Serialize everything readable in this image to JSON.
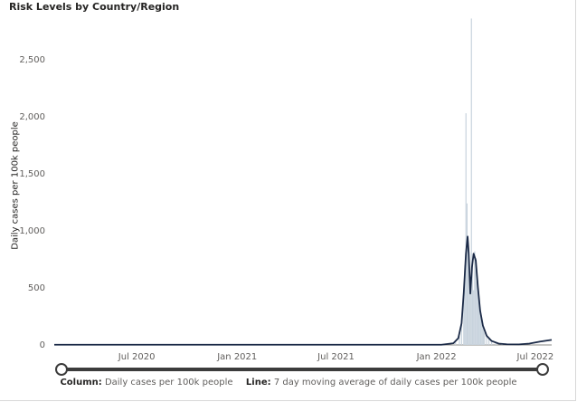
{
  "title": "Risk Levels by Country/Region",
  "legend": {
    "column_key": "Column:",
    "column_value": "Daily cases per 100k people",
    "line_key": "Line:",
    "line_value": "7 day moving average of daily cases per 100k people"
  },
  "colors": {
    "column": "#c8d3dd",
    "line": "#1b2a47",
    "slider": "#3c3c3c"
  },
  "chart_data": {
    "type": "bar",
    "ylabel": "Daily cases per 100k people",
    "ylim": [
      0,
      2800
    ],
    "yticks": [
      0,
      500,
      1000,
      1500,
      2000,
      2500
    ],
    "ytick_labels": [
      "0",
      "500",
      "1,000",
      "1,500",
      "2,000",
      "2,500"
    ],
    "xlim": [
      "2020-02-01",
      "2022-07-31"
    ],
    "xticks": [
      "2020-07-01",
      "2021-01-01",
      "2021-07-01",
      "2022-01-01",
      "2022-07-01"
    ],
    "xtick_labels": [
      "Jul 2020",
      "Jan 2021",
      "Jul 2021",
      "Jan 2022",
      "Jul 2022"
    ],
    "grid": false,
    "legend_position": "bottom",
    "series": [
      {
        "name": "Daily cases per 100k people",
        "type": "column",
        "x": [
          "2022-02-05",
          "2022-02-12",
          "2022-02-16",
          "2022-02-20",
          "2022-02-22",
          "2022-02-24",
          "2022-02-26",
          "2022-02-28",
          "2022-03-02",
          "2022-03-04",
          "2022-03-06",
          "2022-03-08",
          "2022-03-10",
          "2022-03-12",
          "2022-03-14",
          "2022-03-16",
          "2022-03-18",
          "2022-03-20",
          "2022-03-22",
          "2022-03-24",
          "2022-03-26",
          "2022-03-28",
          "2022-03-30",
          "2022-04-03",
          "2022-04-07",
          "2022-04-12",
          "2022-04-20",
          "2022-05-01"
        ],
        "values": [
          20,
          80,
          200,
          420,
          700,
          2030,
          1240,
          900,
          620,
          500,
          2860,
          700,
          480,
          820,
          760,
          560,
          500,
          380,
          300,
          230,
          180,
          140,
          110,
          80,
          60,
          40,
          20,
          10
        ]
      },
      {
        "name": "7 day moving average of daily cases per 100k people",
        "type": "line",
        "x": [
          "2020-02-01",
          "2021-06-01",
          "2022-01-10",
          "2022-02-01",
          "2022-02-10",
          "2022-02-16",
          "2022-02-20",
          "2022-02-24",
          "2022-02-27",
          "2022-03-01",
          "2022-03-04",
          "2022-03-07",
          "2022-03-10",
          "2022-03-14",
          "2022-03-18",
          "2022-03-22",
          "2022-03-27",
          "2022-04-03",
          "2022-04-12",
          "2022-04-25",
          "2022-05-10",
          "2022-06-01",
          "2022-06-20",
          "2022-07-10",
          "2022-07-31"
        ],
        "values": [
          2,
          2,
          2,
          15,
          60,
          190,
          460,
          800,
          950,
          810,
          450,
          680,
          800,
          740,
          500,
          300,
          170,
          80,
          35,
          12,
          6,
          5,
          12,
          30,
          45
        ]
      }
    ]
  }
}
